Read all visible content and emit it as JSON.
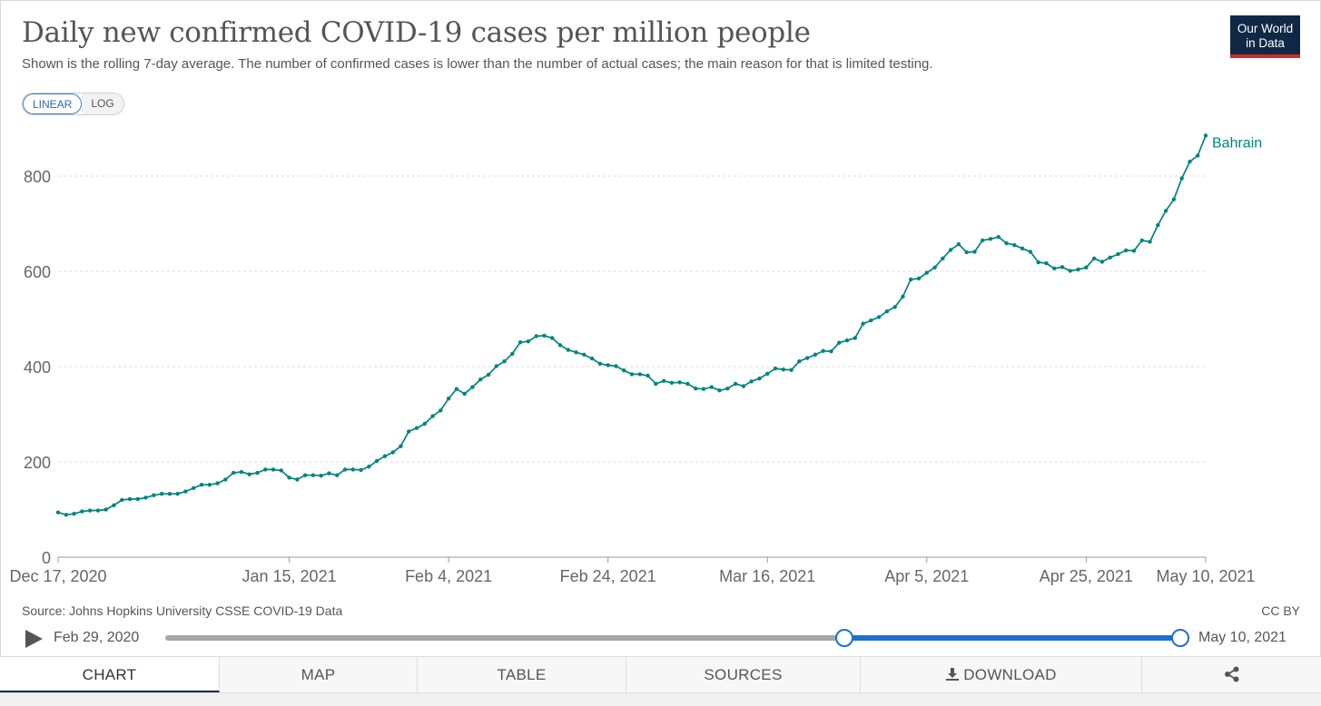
{
  "header": {
    "title": "Daily new confirmed COVID-19 cases per million people",
    "subtitle": "Shown is the rolling 7-day average. The number of confirmed cases is lower than the number of actual cases; the main reason for that is limited testing.",
    "logo_line1": "Our World",
    "logo_line2": "in Data"
  },
  "scale_toggle": {
    "linear": "LINEAR",
    "log": "LOG",
    "active": "LINEAR"
  },
  "colors": {
    "series": "#00847e",
    "logo_bg": "#0f2846",
    "logo_bar": "#d42b21",
    "slider": "#1f6fd1"
  },
  "chart_data": {
    "type": "line",
    "log_scale": false,
    "grid": "horizontal dashed",
    "ylim": [
      0,
      900
    ],
    "yticks": [
      0,
      200,
      400,
      600,
      800
    ],
    "xticks": [
      "Dec 17, 2020",
      "Jan 15, 2021",
      "Feb 4, 2021",
      "Feb 24, 2021",
      "Mar 16, 2021",
      "Apr 5, 2021",
      "Apr 25, 2021",
      "May 10, 2021"
    ],
    "xtick_offsets": [
      0,
      29,
      49,
      69,
      89,
      109,
      129,
      144
    ],
    "series": [
      {
        "name": "Bahrain",
        "start": "Dec 17, 2020",
        "end": "May 10, 2021",
        "values": [
          94,
          89,
          91,
          96,
          98,
          98,
          100,
          109,
          120,
          122,
          122,
          125,
          130,
          133,
          133,
          133,
          138,
          145,
          152,
          152,
          155,
          163,
          177,
          179,
          174,
          177,
          184,
          184,
          182,
          167,
          163,
          172,
          172,
          171,
          176,
          172,
          184,
          184,
          183,
          190,
          202,
          212,
          220,
          233,
          264,
          271,
          280,
          296,
          308,
          333,
          353,
          343,
          357,
          373,
          383,
          401,
          411,
          427,
          451,
          453,
          464,
          465,
          460,
          445,
          435,
          430,
          425,
          417,
          406,
          403,
          401,
          392,
          384,
          384,
          381,
          364,
          370,
          366,
          367,
          364,
          354,
          353,
          357,
          350,
          354,
          364,
          359,
          369,
          375,
          385,
          396,
          394,
          393,
          411,
          418,
          425,
          433,
          432,
          450,
          455,
          460,
          490,
          497,
          504,
          516,
          525,
          547,
          583,
          585,
          597,
          608,
          627,
          645,
          657,
          640,
          641,
          665,
          668,
          672,
          659,
          655,
          648,
          641,
          619,
          617,
          606,
          609,
          601,
          604,
          608,
          627,
          620,
          629,
          636,
          644,
          643,
          665,
          662,
          697,
          727,
          751,
          795,
          830,
          843,
          885
        ]
      }
    ]
  },
  "footer": {
    "source": "Source: Johns Hopkins University CSSE COVID-19 Data",
    "license": "CC BY"
  },
  "timeline": {
    "start_label": "Feb 29, 2020",
    "end_label": "May 10, 2021",
    "selection_start_fraction": 0.676,
    "selection_end_fraction": 1.0
  },
  "tabs": [
    "CHART",
    "MAP",
    "TABLE",
    "SOURCES",
    "DOWNLOAD",
    ""
  ],
  "active_tab": "CHART"
}
